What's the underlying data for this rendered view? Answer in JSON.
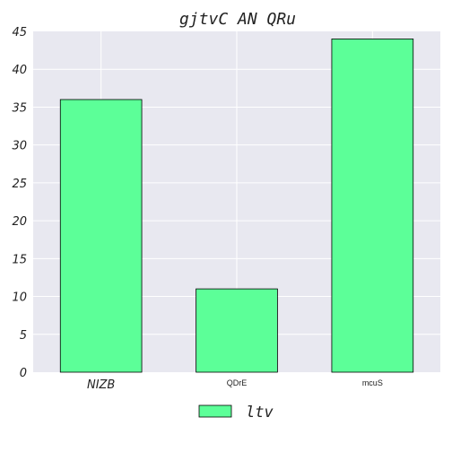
{
  "chart_data": {
    "type": "bar",
    "title": "gjtvC AN QRu",
    "xlabel": "",
    "ylabel": "",
    "categories": [
      "NIZB",
      "QDrE",
      "mcuS"
    ],
    "series": [
      {
        "name": "ltv",
        "values": [
          36,
          11,
          44
        ]
      }
    ],
    "ylim": [
      0,
      45
    ],
    "yticks": [
      0,
      5,
      10,
      15,
      20,
      25,
      30,
      35,
      40,
      45
    ],
    "grid": true,
    "legend_position": "bottom-center",
    "colors": {
      "bar_fill": "#5cff98",
      "bar_edge": "#000000",
      "plot_background": "#e8e8f0",
      "grid": "#ffffff"
    }
  }
}
